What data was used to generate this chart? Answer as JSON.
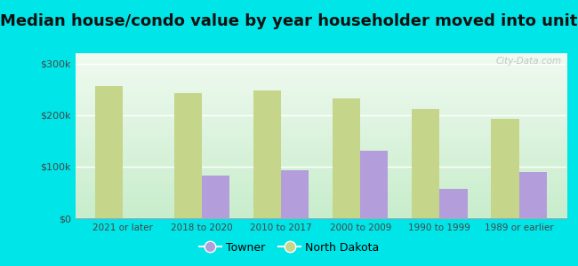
{
  "title": "Median house/condo value by year householder moved into unit",
  "categories": [
    "2021 or later",
    "2018 to 2020",
    "2010 to 2017",
    "2000 to 2009",
    "1990 to 1999",
    "1989 or earlier"
  ],
  "towner_values": [
    0,
    82000,
    93000,
    130000,
    57000,
    90000
  ],
  "nd_values": [
    257000,
    242000,
    248000,
    232000,
    212000,
    192000
  ],
  "towner_color": "#b39ddb",
  "nd_color": "#c5d68a",
  "background_outer": "#00e5e8",
  "background_inner": "#e8f5e4",
  "ylim": [
    0,
    320000
  ],
  "yticks": [
    0,
    100000,
    200000,
    300000
  ],
  "ytick_labels": [
    "$0",
    "$100k",
    "$200k",
    "$300k"
  ],
  "title_fontsize": 13,
  "legend_labels": [
    "Towner",
    "North Dakota"
  ],
  "bar_width": 0.35,
  "watermark": "City-Data.com"
}
